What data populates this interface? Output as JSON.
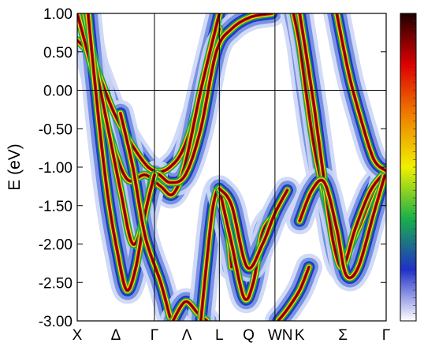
{
  "chart_data": {
    "type": "heatmap",
    "title": "",
    "xlabel": "",
    "ylabel": "E (eV)",
    "ylim": [
      -3.0,
      1.0
    ],
    "y_ticks": [
      "1.00",
      "0.50",
      "0.00",
      "-0.50",
      "-1.00",
      "-1.50",
      "-2.00",
      "-2.50",
      "-3.00"
    ],
    "y_tick_values": [
      1.0,
      0.5,
      0.0,
      -0.5,
      -1.0,
      -1.5,
      -2.0,
      -2.5,
      -3.0
    ],
    "x_ticks": [
      "X",
      "Δ",
      "Γ",
      "Λ",
      "L",
      "Q",
      "W",
      "N",
      "K",
      "Σ",
      "Γ"
    ],
    "x_tick_positions": [
      0,
      0.125,
      0.25,
      0.355,
      0.46,
      0.555,
      0.64,
      0.68,
      0.72,
      0.86,
      1.0
    ],
    "high_symmetry_lines": [
      0.25,
      0.46,
      0.64
    ],
    "fermi_level": 0.0,
    "grid": false,
    "legend": "colorbar on the right, no tick labels",
    "colormap": [
      "#ffffff",
      "#2030c8",
      "#1ab04a",
      "#f0f000",
      "#f08000",
      "#dd0000",
      "#200000"
    ],
    "bands": [
      {
        "x": [
          0.0,
          0.05,
          0.12,
          0.2,
          0.25,
          0.3,
          0.35,
          0.42,
          0.46
        ],
        "y": [
          0.65,
          0.4,
          -0.3,
          -0.85,
          -1.05,
          -1.0,
          -0.7,
          0.2,
          0.8
        ]
      },
      {
        "x": [
          0.0,
          0.04,
          0.1,
          0.16,
          0.22,
          0.27,
          0.31,
          0.35,
          0.4,
          0.46
        ],
        "y": [
          1.0,
          0.4,
          -0.5,
          -1.15,
          -1.1,
          -1.25,
          -1.35,
          -0.95,
          0.0,
          1.0
        ]
      },
      {
        "x": [
          0.025,
          0.06,
          0.1,
          0.14,
          0.18,
          0.22,
          0.25,
          0.3,
          0.35,
          0.4,
          0.45,
          0.5,
          0.56,
          0.63
        ],
        "y": [
          1.0,
          0.3,
          -0.5,
          -1.3,
          -2.0,
          -1.6,
          -1.1,
          -1.2,
          -1.1,
          -0.5,
          0.5,
          0.8,
          0.95,
          1.0
        ]
      },
      {
        "x": [
          0.035,
          0.07,
          0.1,
          0.13,
          0.16,
          0.19,
          0.22,
          0.25
        ],
        "y": [
          1.0,
          -0.4,
          -1.4,
          -2.1,
          -2.6,
          -2.3,
          -1.6,
          -1.1
        ]
      },
      {
        "x": [
          0.14,
          0.18,
          0.22,
          0.27,
          0.3
        ],
        "y": [
          -0.3,
          -1.0,
          -1.9,
          -2.5,
          -2.95
        ]
      },
      {
        "x": [
          0.31,
          0.35,
          0.39,
          0.42
        ],
        "y": [
          -3.0,
          -2.75,
          -2.9,
          -3.0
        ]
      },
      {
        "x": [
          0.4,
          0.42,
          0.44,
          0.46,
          0.48,
          0.5
        ],
        "y": [
          -3.0,
          -2.2,
          -1.5,
          -1.28,
          -1.55,
          -2.3
        ]
      },
      {
        "x": [
          0.46,
          0.5,
          0.54,
          0.57,
          0.6,
          0.64
        ],
        "y": [
          -1.28,
          -2.0,
          -2.7,
          -2.5,
          -1.85,
          -1.62
        ]
      },
      {
        "x": [
          0.46,
          0.5,
          0.55,
          0.6,
          0.64,
          0.68
        ],
        "y": [
          -1.28,
          -1.5,
          -2.3,
          -2.0,
          -1.6,
          -1.3
        ]
      },
      {
        "x": [
          0.65,
          0.68,
          0.72,
          0.75
        ],
        "y": [
          -3.0,
          -2.85,
          -2.6,
          -2.3
        ]
      },
      {
        "x": [
          0.7,
          0.72,
          0.74,
          0.77,
          0.82,
          0.86,
          0.91,
          0.96,
          1.0
        ],
        "y": [
          1.0,
          0.6,
          0.0,
          -0.8,
          -1.7,
          -2.15,
          -1.8,
          -1.3,
          -1.05
        ]
      },
      {
        "x": [
          0.72,
          0.74,
          0.77,
          0.8,
          0.83,
          0.86,
          0.9,
          0.95,
          1.0
        ],
        "y": [
          1.0,
          0.5,
          -0.3,
          -1.2,
          -2.0,
          -2.3,
          -1.8,
          -1.3,
          -1.05
        ]
      },
      {
        "x": [
          0.72,
          0.76,
          0.8,
          0.84,
          0.87,
          0.91,
          0.96,
          1.0
        ],
        "y": [
          -1.7,
          -1.3,
          -1.2,
          -1.8,
          -2.4,
          -2.3,
          -1.6,
          -1.05
        ]
      },
      {
        "x": [
          0.84,
          0.88,
          0.92,
          0.96,
          1.0
        ],
        "y": [
          1.0,
          0.2,
          -0.4,
          -0.9,
          -1.05
        ]
      }
    ]
  }
}
